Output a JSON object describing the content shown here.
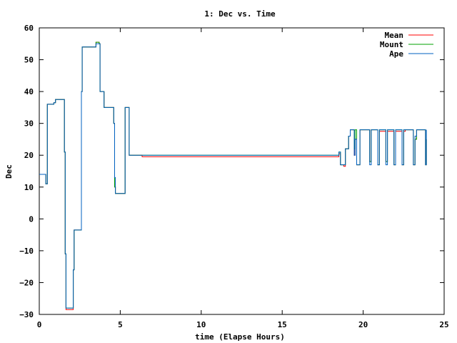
{
  "chart_data": {
    "type": "line",
    "title": "1: Dec vs. Time",
    "xlabel": "time (Elapse Hours)",
    "ylabel": "Dec",
    "xlim": [
      0,
      25
    ],
    "ylim": [
      -30,
      60
    ],
    "xticks": [
      "0",
      "5",
      "10",
      "15",
      "20",
      "25"
    ],
    "yticks": [
      "60",
      "50",
      "40",
      "30",
      "20",
      "10",
      "0",
      "−10",
      "−20",
      "−30"
    ],
    "grid": false,
    "legend_position": "top-right",
    "series": [
      {
        "name": "Mean",
        "color": "#ff0000",
        "x": [
          0.0,
          0.35,
          0.4,
          0.5,
          0.9,
          1.0,
          1.5,
          1.55,
          1.6,
          1.65,
          2.05,
          2.1,
          2.15,
          2.2,
          2.55,
          2.6,
          2.65,
          3.1,
          3.5,
          3.7,
          3.75,
          4.0,
          4.4,
          4.6,
          4.65,
          4.7,
          4.8,
          5.25,
          5.3,
          5.35,
          5.5,
          5.55,
          6.3,
          6.35,
          10.0,
          15.0,
          18.3,
          18.5,
          18.6,
          18.8,
          18.9,
          19.1,
          19.2,
          19.3,
          19.45,
          19.5,
          19.6,
          19.8,
          20.3,
          20.4,
          20.5,
          20.8,
          20.9,
          21.0,
          21.3,
          21.4,
          21.5,
          21.8,
          21.9,
          22.0,
          22.3,
          22.4,
          22.5,
          22.6,
          23.0,
          23.1,
          23.2,
          23.3,
          23.8,
          23.85,
          23.9
        ],
        "y": [
          14,
          14,
          11,
          36,
          36.5,
          37.5,
          37.5,
          21,
          -11,
          -28.5,
          -28.5,
          -16,
          -3.5,
          -3.5,
          -3.5,
          40,
          54,
          54,
          55.5,
          55,
          40,
          35,
          35,
          30,
          10,
          8,
          8,
          8,
          35,
          35,
          35,
          20,
          20,
          19.5,
          19.5,
          19.5,
          19.5,
          20.5,
          17,
          16.5,
          22,
          26,
          28,
          28,
          20,
          25,
          17,
          28,
          28,
          18,
          28,
          28,
          17,
          27.5,
          27.5,
          18,
          27.5,
          27.5,
          17,
          27.5,
          27.5,
          17,
          27.5,
          28,
          28,
          17,
          25,
          28,
          28,
          17,
          25
        ]
      },
      {
        "name": "Mount",
        "color": "#00a000",
        "x": [
          0.0,
          0.35,
          0.4,
          0.5,
          0.9,
          1.0,
          1.5,
          1.55,
          1.6,
          1.65,
          2.05,
          2.1,
          2.15,
          2.2,
          2.55,
          2.6,
          2.65,
          3.1,
          3.5,
          3.7,
          3.75,
          4.0,
          4.4,
          4.6,
          4.65,
          4.7,
          4.8,
          5.25,
          5.3,
          5.35,
          5.5,
          5.55,
          6.3,
          6.35,
          10.0,
          15.0,
          18.3,
          18.5,
          18.6,
          18.8,
          18.9,
          19.1,
          19.2,
          19.3,
          19.45,
          19.5,
          19.6,
          19.8,
          20.3,
          20.4,
          20.5,
          20.8,
          20.9,
          21.0,
          21.3,
          21.4,
          21.5,
          21.8,
          21.9,
          22.0,
          22.3,
          22.4,
          22.5,
          22.6,
          23.0,
          23.1,
          23.2,
          23.3,
          23.8,
          23.85,
          23.9
        ],
        "y": [
          14,
          14,
          11,
          36,
          36.5,
          37.5,
          37.5,
          21,
          -11,
          -28,
          -28,
          -16,
          -3.5,
          -3.5,
          -3.5,
          40,
          54,
          54,
          55.5,
          55,
          40,
          35,
          35,
          30,
          10,
          8,
          8,
          8,
          35,
          35,
          35,
          20,
          20,
          20,
          20,
          20,
          20,
          21,
          17,
          17,
          22,
          26,
          28,
          28,
          22,
          28,
          17,
          28,
          28,
          18,
          28,
          28,
          17,
          28,
          28,
          18,
          28,
          28,
          17,
          28,
          28,
          17,
          28,
          28,
          28,
          17,
          25,
          28,
          28,
          17,
          25
        ]
      },
      {
        "name": "Ape",
        "color": "#0060c0",
        "x": [
          0.0,
          0.35,
          0.4,
          0.5,
          0.9,
          1.0,
          1.5,
          1.55,
          1.6,
          1.65,
          2.05,
          2.1,
          2.15,
          2.2,
          2.55,
          2.6,
          2.65,
          3.1,
          3.5,
          3.7,
          3.75,
          4.0,
          4.4,
          4.6,
          4.65,
          4.7,
          4.8,
          5.25,
          5.3,
          5.35,
          5.5,
          5.55,
          6.3,
          6.35,
          10.0,
          15.0,
          18.3,
          18.5,
          18.6,
          18.8,
          18.9,
          19.1,
          19.2,
          19.3,
          19.45,
          19.5,
          19.6,
          19.8,
          20.3,
          20.4,
          20.5,
          20.8,
          20.9,
          21.0,
          21.3,
          21.4,
          21.5,
          21.8,
          21.9,
          22.0,
          22.3,
          22.4,
          22.5,
          22.6,
          23.0,
          23.1,
          23.2,
          23.3,
          23.8,
          23.85,
          23.9
        ],
        "y": [
          14,
          14,
          11,
          36,
          36.5,
          37.5,
          37.5,
          21,
          -11,
          -28,
          -28,
          -16,
          -3.5,
          -3.5,
          -3.5,
          40,
          54,
          54,
          55,
          55,
          40,
          35,
          35,
          30,
          13,
          8,
          8,
          8,
          35,
          35,
          35,
          20,
          20,
          20,
          20,
          20,
          20,
          21,
          17,
          17,
          22,
          26,
          28,
          28,
          20,
          25,
          17,
          28,
          28,
          17,
          28,
          28,
          17,
          28,
          28,
          17,
          28,
          28,
          17,
          28,
          28,
          17,
          28,
          28,
          28,
          17,
          26,
          28,
          28,
          17,
          28
        ]
      }
    ]
  }
}
